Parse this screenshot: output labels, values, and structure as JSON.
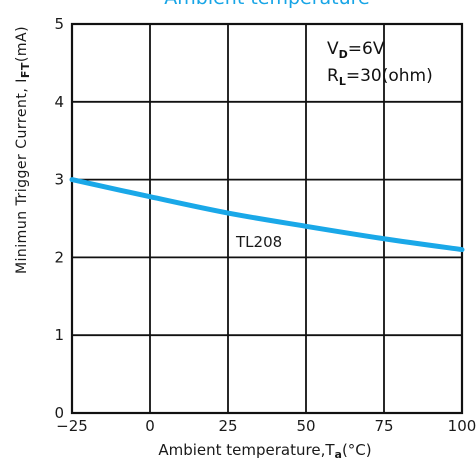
{
  "chart_data": {
    "type": "line",
    "title": "Ambient temperature",
    "xlabel": "Ambient  temperature,T",
    "xlabel_sub": "a",
    "xlabel_unit": "(°C)",
    "ylabel": "Minimun  Trigger  Current,  I",
    "ylabel_sub": "FT",
    "ylabel_unit": "(mA)",
    "xlim": [
      -25,
      100
    ],
    "ylim": [
      0,
      5
    ],
    "xticks": [
      "−25",
      "0",
      "25",
      "50",
      "75",
      "100"
    ],
    "xtick_values": [
      -25,
      0,
      25,
      50,
      75,
      100
    ],
    "yticks": [
      "0",
      "1",
      "2",
      "3",
      "4",
      "5"
    ],
    "ytick_values": [
      0,
      1,
      2,
      3,
      4,
      5
    ],
    "grid": true,
    "series": [
      {
        "name": "TL208",
        "color": "#1aa8e8",
        "x": [
          -25,
          0,
          25,
          50,
          75,
          100
        ],
        "y": [
          3.0,
          2.78,
          2.57,
          2.4,
          2.24,
          2.1
        ]
      }
    ],
    "annotations": {
      "vd_main": "V",
      "vd_sub": "D",
      "vd_rest": "=6V",
      "rl_main": "R",
      "rl_sub": "L",
      "rl_rest": "=30(ohm)"
    }
  }
}
